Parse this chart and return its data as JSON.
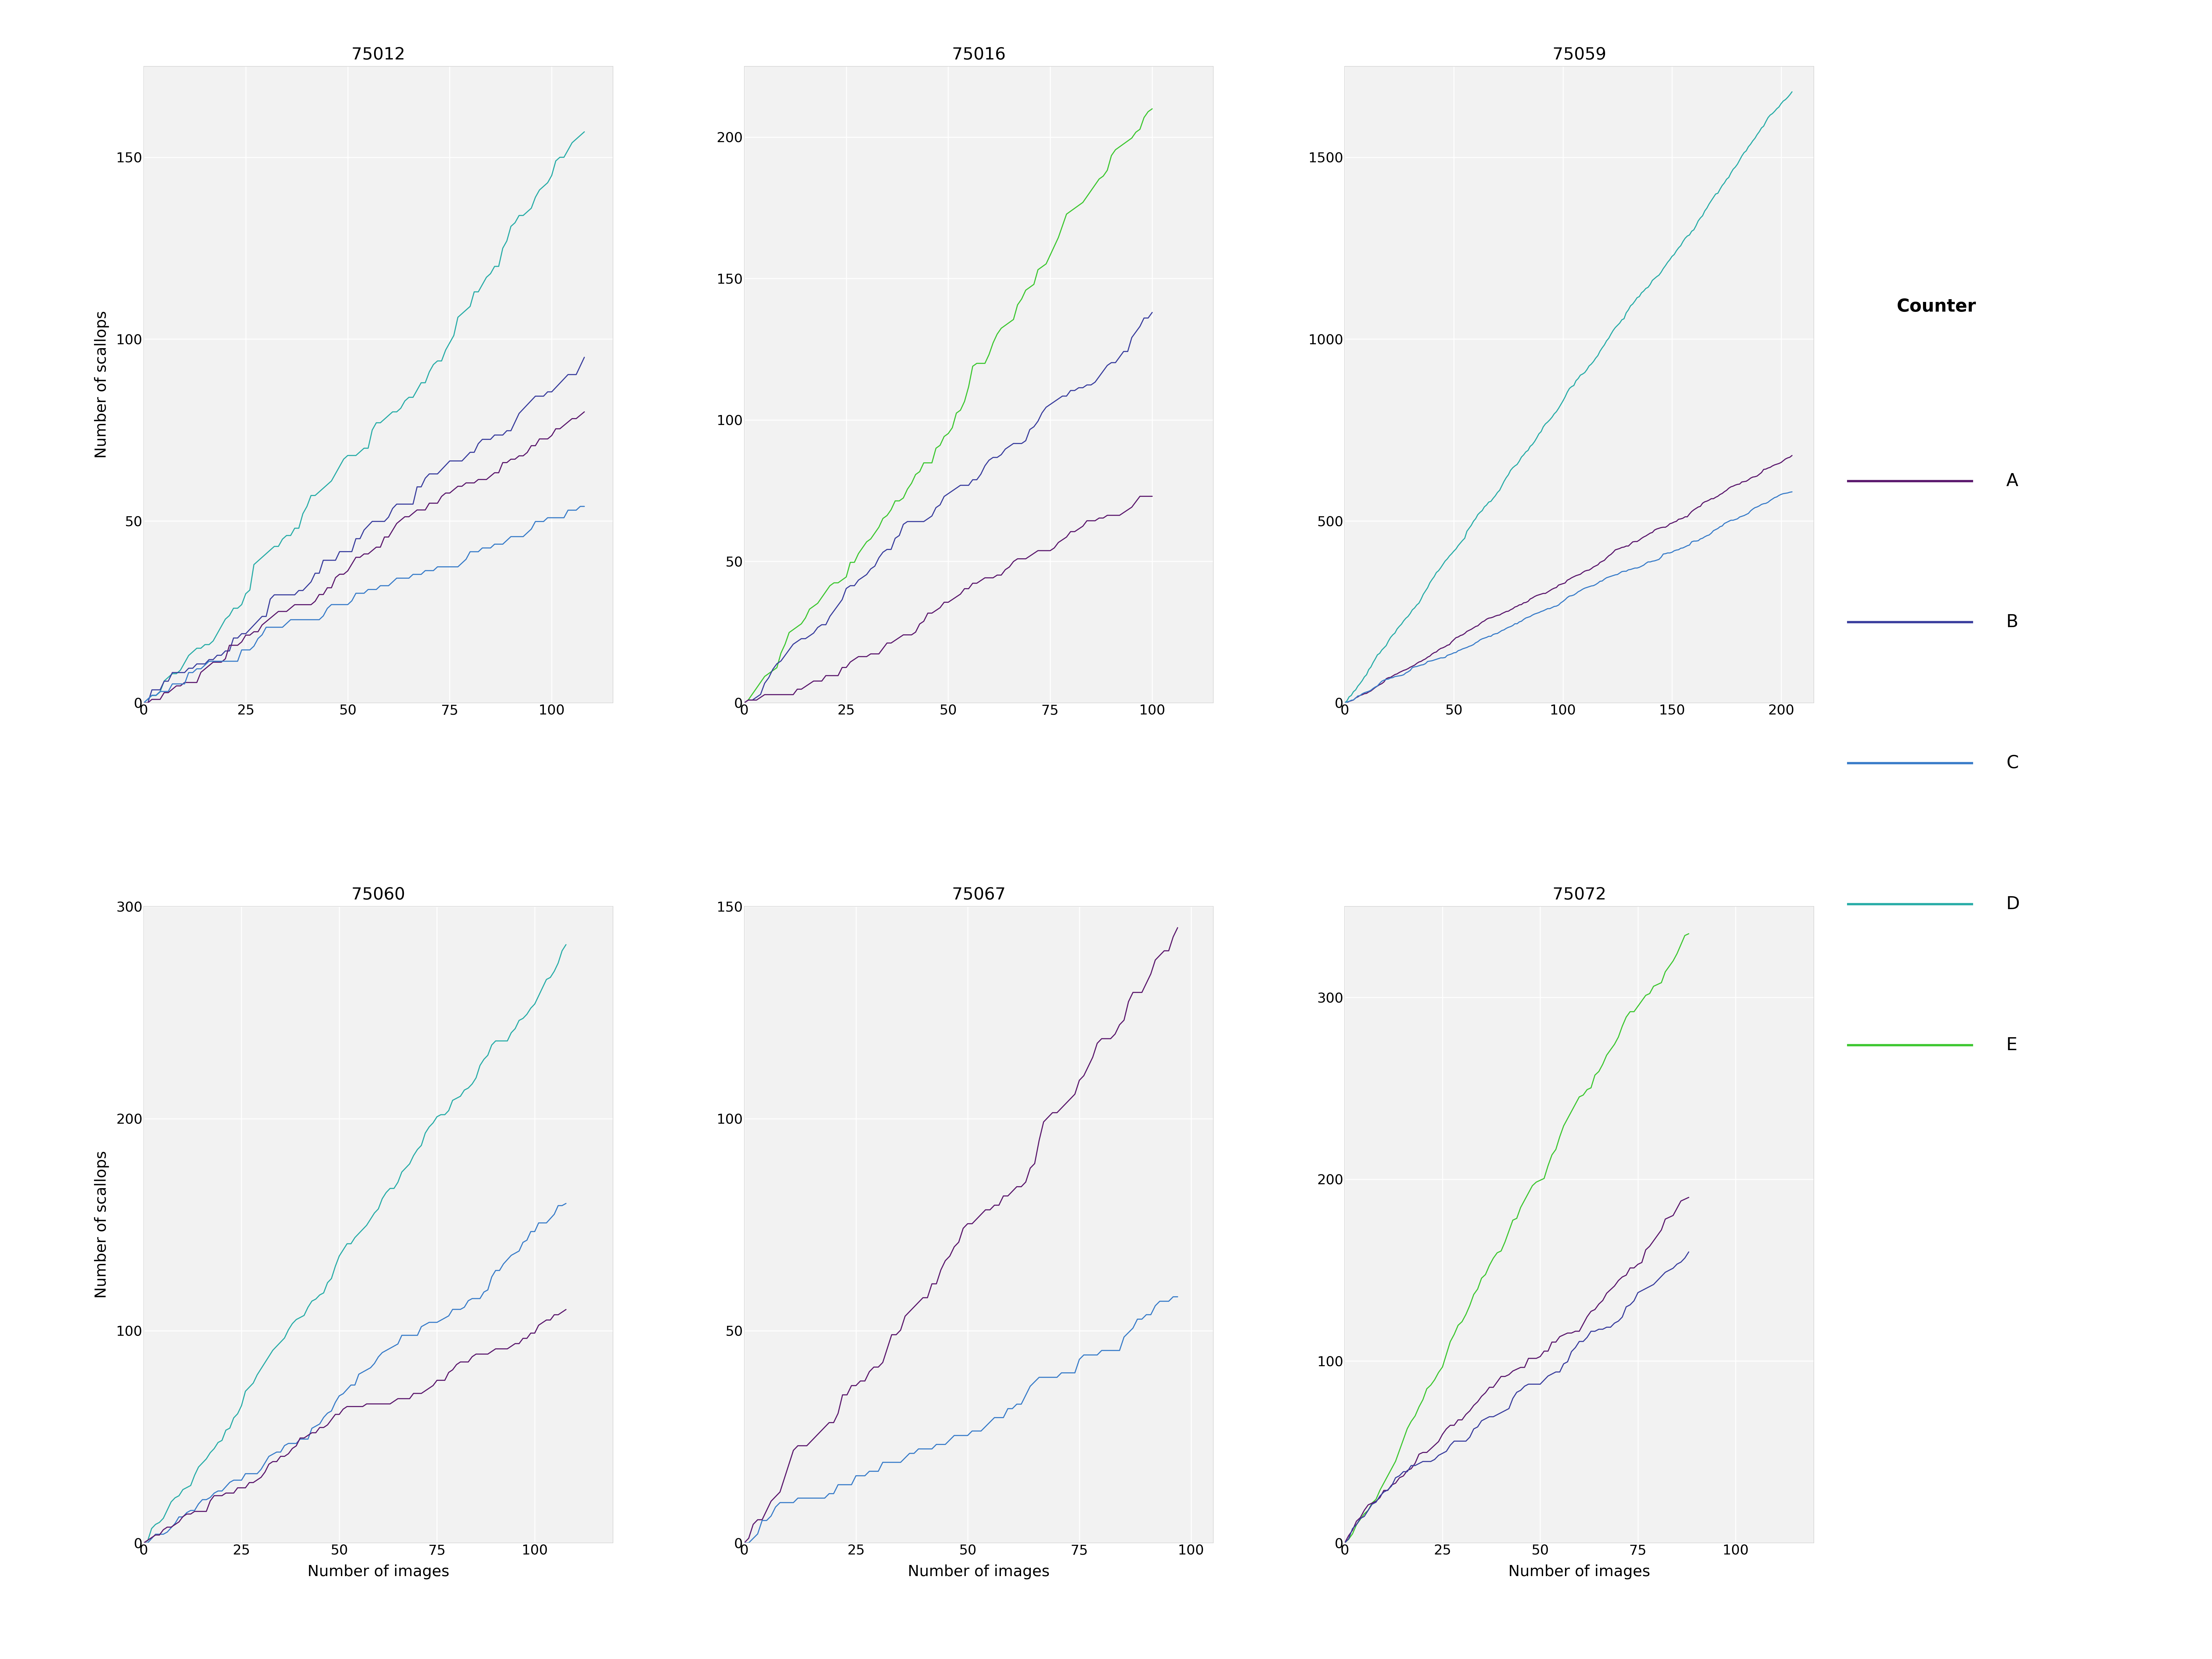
{
  "stations": [
    "75012",
    "75016",
    "75059",
    "75060",
    "75067",
    "75072"
  ],
  "counter_colors": {
    "A": "#5C1A6E",
    "B": "#3B3F9E",
    "C": "#3A7DC9",
    "D": "#2AADA8",
    "E": "#3EC732"
  },
  "xlabel": "Number of images",
  "ylabel": "Number of scallops",
  "panel_background": "#F2F2F2",
  "grid_color": "#FFFFFF",
  "station_counters": {
    "75012": [
      "D",
      "B",
      "A",
      "C"
    ],
    "75016": [
      "E",
      "B",
      "A"
    ],
    "75059": [
      "D",
      "A",
      "C"
    ],
    "75060": [
      "D",
      "C",
      "A"
    ],
    "75067": [
      "A",
      "C"
    ],
    "75072": [
      "E",
      "A",
      "B"
    ]
  },
  "ylims": {
    "75012": [
      0,
      175
    ],
    "75016": [
      0,
      225
    ],
    "75059": [
      0,
      1750
    ],
    "75060": [
      0,
      300
    ],
    "75067": [
      0,
      150
    ],
    "75072": [
      0,
      350
    ]
  },
  "xlims": {
    "75012": [
      0,
      115
    ],
    "75016": [
      0,
      115
    ],
    "75059": [
      0,
      215
    ],
    "75060": [
      0,
      120
    ],
    "75067": [
      0,
      105
    ],
    "75072": [
      0,
      120
    ]
  },
  "yticks": {
    "75012": [
      0,
      50,
      100,
      150
    ],
    "75016": [
      0,
      50,
      100,
      150,
      200
    ],
    "75059": [
      0,
      500,
      1000,
      1500
    ],
    "75060": [
      0,
      100,
      200,
      300
    ],
    "75067": [
      0,
      50,
      100,
      150
    ],
    "75072": [
      0,
      100,
      200,
      300
    ]
  },
  "xticks": {
    "75012": [
      0,
      25,
      50,
      75,
      100
    ],
    "75016": [
      0,
      25,
      50,
      75,
      100
    ],
    "75059": [
      0,
      50,
      100,
      150,
      200
    ],
    "75060": [
      0,
      25,
      50,
      75,
      100
    ],
    "75067": [
      0,
      25,
      50,
      75,
      100
    ],
    "75072": [
      0,
      25,
      50,
      75,
      100
    ]
  }
}
